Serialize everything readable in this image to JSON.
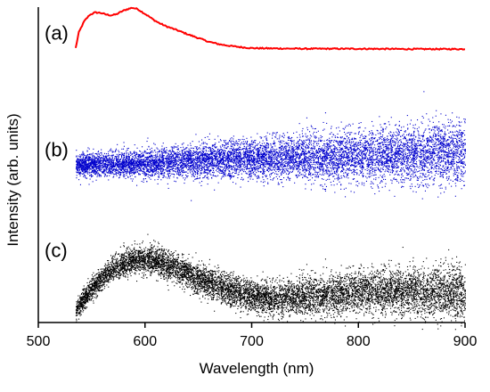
{
  "chart_data": {
    "type": "scatter",
    "xlabel": "Wavelength (nm)",
    "ylabel": "Intensity (arb. units)",
    "xlim": [
      500,
      900
    ],
    "x_ticks": [
      500,
      600,
      700,
      800,
      900
    ],
    "x_tick_labels": [
      "500",
      "600",
      "700",
      "800",
      "900"
    ],
    "y_ticks": [],
    "y_range": [
      0,
      10
    ],
    "grid": false,
    "legend": "none",
    "panels": [
      {
        "label": "(a)",
        "style": "line",
        "color": "#ff0000",
        "points": [
          [
            535,
            8.7
          ],
          [
            538,
            9.2
          ],
          [
            543,
            9.55
          ],
          [
            548,
            9.75
          ],
          [
            553,
            9.83
          ],
          [
            558,
            9.82
          ],
          [
            563,
            9.77
          ],
          [
            568,
            9.74
          ],
          [
            573,
            9.77
          ],
          [
            578,
            9.86
          ],
          [
            583,
            9.93
          ],
          [
            588,
            9.98
          ],
          [
            593,
            9.94
          ],
          [
            598,
            9.83
          ],
          [
            603,
            9.72
          ],
          [
            608,
            9.6
          ],
          [
            613,
            9.5
          ],
          [
            620,
            9.39
          ],
          [
            630,
            9.27
          ],
          [
            640,
            9.14
          ],
          [
            650,
            9.02
          ],
          [
            660,
            8.9
          ],
          [
            670,
            8.82
          ],
          [
            680,
            8.77
          ],
          [
            690,
            8.73
          ],
          [
            700,
            8.7
          ],
          [
            720,
            8.69
          ],
          [
            750,
            8.68
          ],
          [
            800,
            8.68
          ],
          [
            850,
            8.67
          ],
          [
            900,
            8.67
          ]
        ]
      },
      {
        "label": "(b)",
        "style": "dots",
        "color": "#0000cc",
        "x_start": 535,
        "x_end": 900,
        "center": [
          [
            535,
            5.0
          ],
          [
            600,
            5.05
          ],
          [
            700,
            5.2
          ],
          [
            800,
            5.3
          ],
          [
            900,
            5.4
          ]
        ],
        "spread": [
          [
            535,
            0.35
          ],
          [
            700,
            0.6
          ],
          [
            900,
            1.0
          ]
        ]
      },
      {
        "label": "(c)",
        "style": "dots",
        "color": "#000000",
        "x_start": 535,
        "x_end": 900,
        "center": [
          [
            535,
            0.4
          ],
          [
            550,
            1.1
          ],
          [
            570,
            1.75
          ],
          [
            590,
            2.0
          ],
          [
            610,
            2.0
          ],
          [
            630,
            1.7
          ],
          [
            660,
            1.25
          ],
          [
            690,
            0.9
          ],
          [
            720,
            0.75
          ],
          [
            760,
            0.85
          ],
          [
            800,
            1.0
          ],
          [
            850,
            1.0
          ],
          [
            900,
            0.95
          ]
        ],
        "spread": [
          [
            535,
            0.3
          ],
          [
            600,
            0.45
          ],
          [
            700,
            0.5
          ],
          [
            800,
            0.65
          ],
          [
            900,
            0.85
          ]
        ]
      }
    ]
  }
}
